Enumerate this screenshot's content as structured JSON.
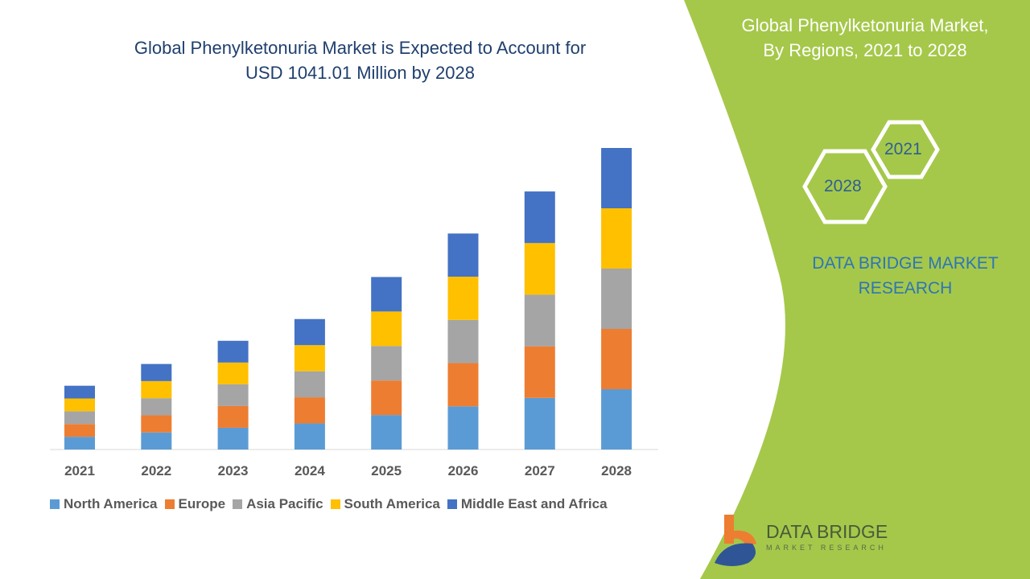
{
  "title": "Global Phenylketonuria Market is Expected to Account for USD 1041.01 Million by 2028",
  "title_lines": [
    "Global Phenylketonuria Market is Expected to Account for",
    "USD 1041.01 Million by 2028"
  ],
  "side_panel": {
    "title_lines": [
      "Global Phenylketonuria Market,",
      "By Regions, 2021 to 2028"
    ],
    "hex_start": "2021",
    "hex_end": "2028",
    "brand_lines": [
      "DATA BRIDGE MARKET",
      "RESEARCH"
    ],
    "logo_text": "DATA BRIDGE",
    "logo_subtext": "MARKET RESEARCH",
    "color": "#a5c84a"
  },
  "chart_data": {
    "type": "bar",
    "stacked": true,
    "title": "Global Phenylketonuria Market is Expected to Account for USD 1041.01 Million by 2028",
    "xlabel": "",
    "ylabel": "",
    "grid": false,
    "legend_position": "bottom",
    "categories": [
      "2021",
      "2022",
      "2023",
      "2024",
      "2025",
      "2026",
      "2027",
      "2028"
    ],
    "series": [
      {
        "name": "North America",
        "color": "#5b9bd5",
        "values": [
          44,
          59,
          75,
          90,
          119,
          149,
          178,
          208
        ]
      },
      {
        "name": "Europe",
        "color": "#ed7d31",
        "values": [
          44,
          59,
          75,
          90,
          119,
          149,
          178,
          208
        ]
      },
      {
        "name": "Asia Pacific",
        "color": "#a5a5a5",
        "values": [
          44,
          59,
          75,
          90,
          119,
          149,
          178,
          208
        ]
      },
      {
        "name": "South America",
        "color": "#ffc000",
        "values": [
          44,
          59,
          75,
          90,
          119,
          149,
          178,
          208
        ]
      },
      {
        "name": "Middle East and Africa",
        "color": "#4472c4",
        "values": [
          44,
          59,
          75,
          90,
          119,
          149,
          178,
          208
        ]
      }
    ]
  }
}
